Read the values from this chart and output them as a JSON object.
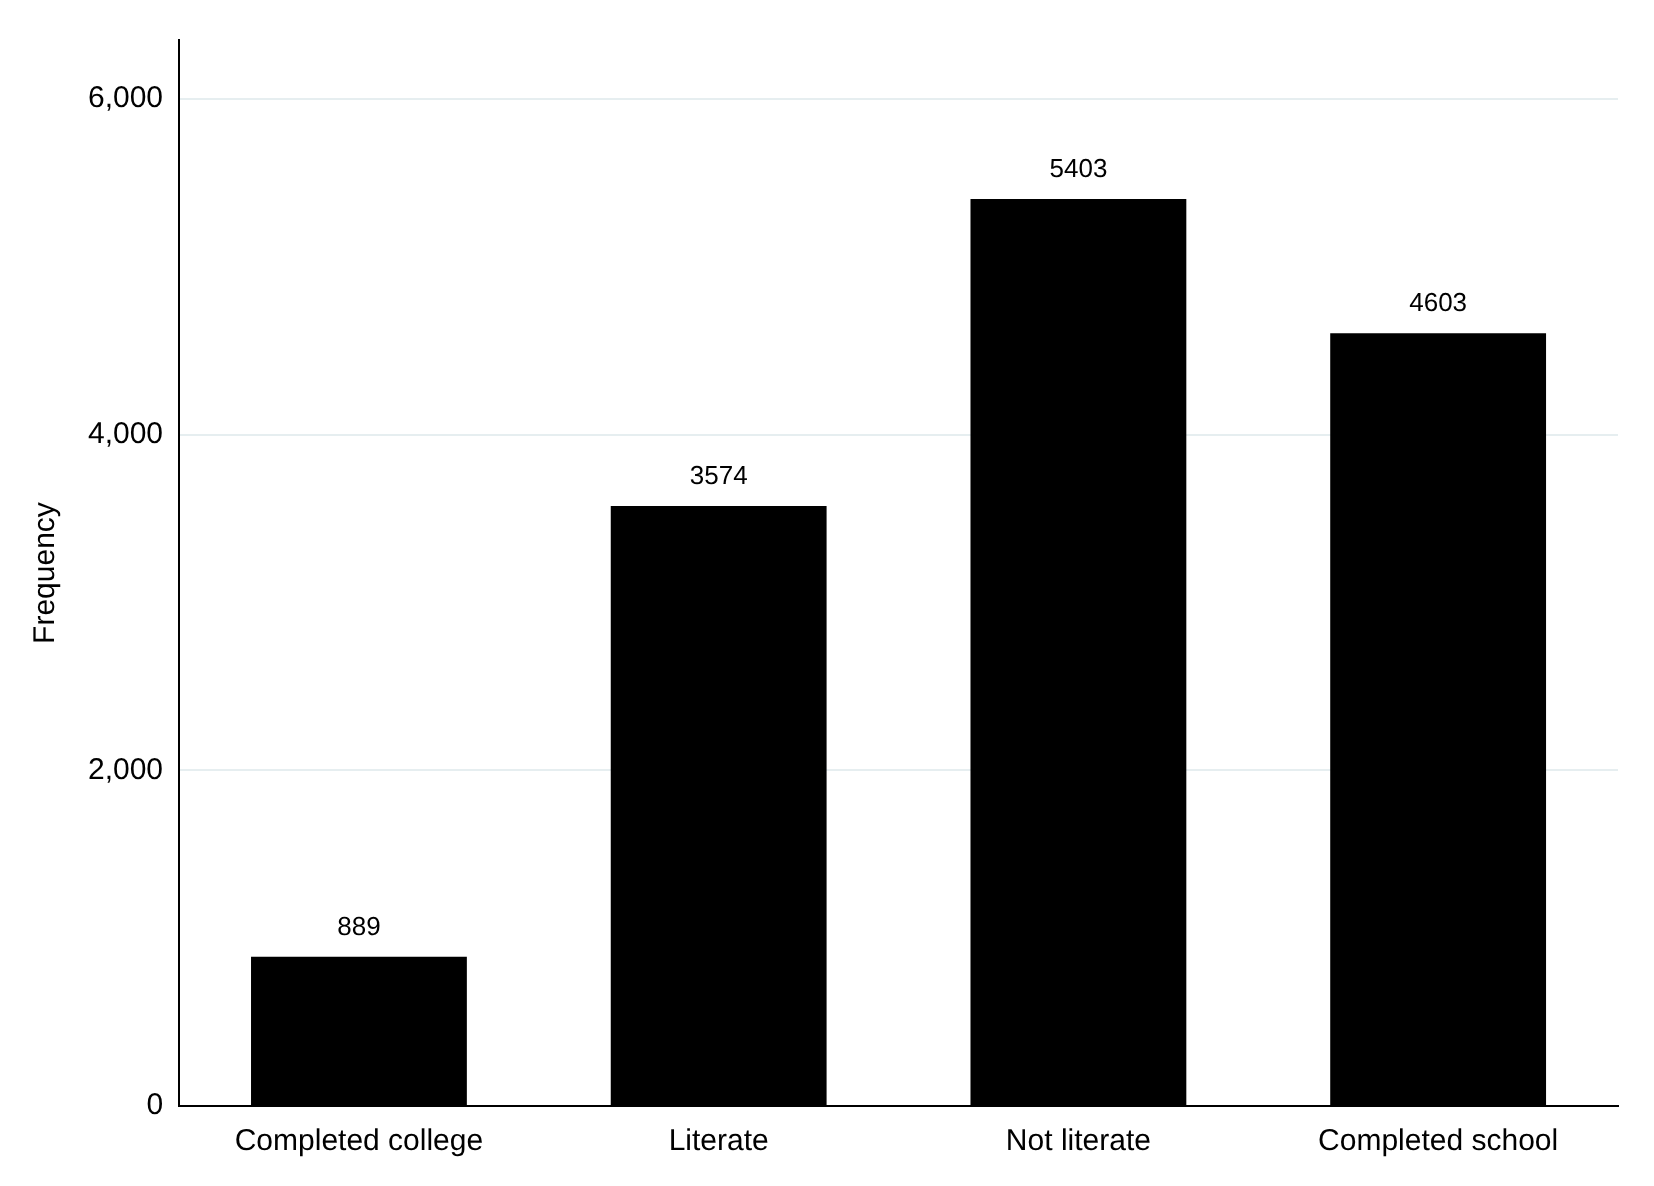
{
  "chart_data": {
    "type": "bar",
    "ylabel": "Frequency",
    "categories": [
      "Completed college",
      "Literate",
      "Not literate",
      "Completed school"
    ],
    "values": [
      889,
      3574,
      5403,
      4603
    ],
    "color": "#000000",
    "ylim": [
      0,
      6350
    ],
    "yticks": [
      {
        "value": 0,
        "label": "0"
      },
      {
        "value": 2000,
        "label": "2,000"
      },
      {
        "value": 4000,
        "label": "4,000"
      },
      {
        "value": 6000,
        "label": "6,000"
      }
    ],
    "grid": "y",
    "data_labels": true
  }
}
